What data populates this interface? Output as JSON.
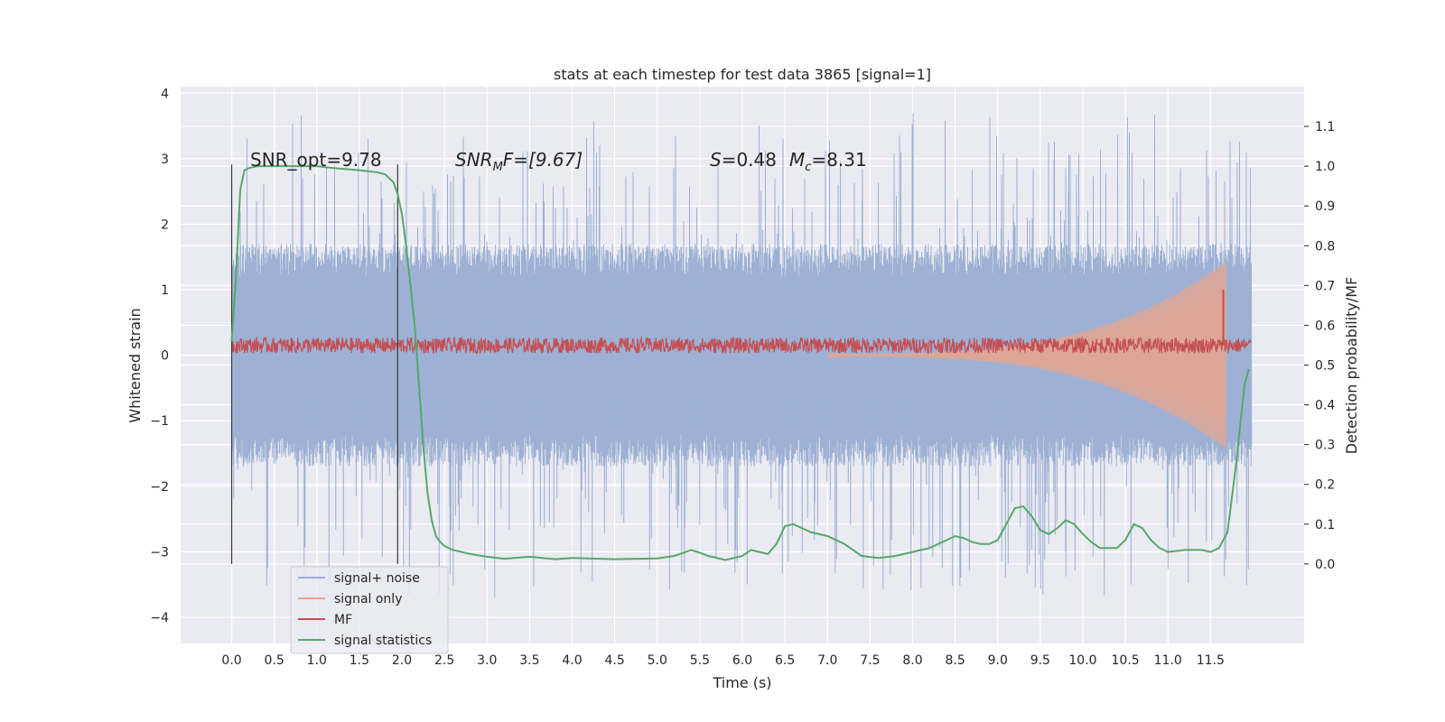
{
  "chart_data": {
    "type": "line",
    "title": "stats at each timestep for test data 3865 [signal=1]",
    "xlabel": "Time (s)",
    "ylabel": "Whitened strain",
    "ylabel_right": "Detection probability/MF",
    "xlim": [
      -0.6,
      12.6
    ],
    "ylim": [
      -4.4,
      4.1
    ],
    "ylim_right": [
      -0.2,
      1.2
    ],
    "x_ticks": [
      "0.0",
      "0.5",
      "1.0",
      "1.5",
      "2.0",
      "2.5",
      "3.0",
      "3.5",
      "4.0",
      "4.5",
      "5.0",
      "5.5",
      "6.0",
      "6.5",
      "7.0",
      "7.5",
      "8.0",
      "8.5",
      "9.0",
      "9.5",
      "10.0",
      "10.5",
      "11.0",
      "11.5"
    ],
    "y_ticks": [
      "4",
      "3",
      "2",
      "1",
      "0",
      "−1",
      "−2",
      "−3",
      "−4"
    ],
    "y_ticks_right": [
      "1.1",
      "1.0",
      "0.9",
      "0.8",
      "0.7",
      "0.6",
      "0.5",
      "0.4",
      "0.3",
      "0.2",
      "0.1",
      "0.0"
    ],
    "grid": true,
    "legend_placement": "lower-left",
    "annotations": {
      "snr_opt": "SNR_opt=9.78",
      "snr_mf_name": "SNR",
      "snr_mf_sub": "M",
      "snr_mf_rest": "F=[9.67]",
      "s_name": "S",
      "s_value": "=0.48",
      "mc_name": "M",
      "mc_sub": "c",
      "mc_value": "=8.31"
    },
    "vertical_markers": [
      0.0,
      1.95
    ],
    "series": [
      {
        "name": "signal+ noise",
        "color": "#9aaed2",
        "axis": "left",
        "envelope": {
          "x_range": [
            0.0,
            11.98
          ],
          "inner_amplitude": 1.7,
          "spike_max": 3.7
        }
      },
      {
        "name": "signal only",
        "color": "#e8a48c",
        "axis": "left",
        "chirp": {
          "start": 7.0,
          "end": 11.68,
          "peak_amplitude": 1.4
        }
      },
      {
        "name": "MF",
        "color": "#c44e52",
        "axis": "left",
        "band": {
          "x_range": [
            0.0,
            11.98
          ],
          "center": 0.15,
          "half_width": 0.12,
          "spike_x": 11.65,
          "spike_y": 1.0
        }
      },
      {
        "name": "signal statistics",
        "color": "#55a868",
        "axis": "right",
        "x": [
          0.0,
          0.05,
          0.1,
          0.15,
          0.2,
          0.3,
          0.5,
          0.8,
          1.0,
          1.2,
          1.5,
          1.7,
          1.8,
          1.9,
          1.95,
          2.0,
          2.05,
          2.1,
          2.15,
          2.2,
          2.25,
          2.3,
          2.35,
          2.4,
          2.45,
          2.5,
          2.6,
          2.8,
          3.0,
          3.2,
          3.5,
          3.8,
          4.0,
          4.5,
          5.0,
          5.2,
          5.4,
          5.5,
          5.6,
          5.8,
          6.0,
          6.1,
          6.2,
          6.3,
          6.4,
          6.5,
          6.6,
          6.7,
          6.8,
          7.0,
          7.2,
          7.4,
          7.6,
          7.8,
          8.0,
          8.2,
          8.4,
          8.5,
          8.6,
          8.7,
          8.8,
          8.9,
          9.0,
          9.1,
          9.2,
          9.3,
          9.4,
          9.5,
          9.6,
          9.7,
          9.8,
          9.9,
          10.0,
          10.1,
          10.2,
          10.4,
          10.5,
          10.6,
          10.7,
          10.8,
          10.9,
          11.0,
          11.2,
          11.4,
          11.5,
          11.6,
          11.7,
          11.8,
          11.9,
          11.95
        ],
        "y": [
          0.56,
          0.72,
          0.94,
          0.99,
          0.995,
          1.0,
          1.0,
          1.0,
          1.0,
          0.995,
          0.99,
          0.985,
          0.98,
          0.96,
          0.93,
          0.88,
          0.8,
          0.7,
          0.6,
          0.45,
          0.3,
          0.18,
          0.11,
          0.07,
          0.055,
          0.045,
          0.035,
          0.025,
          0.018,
          0.013,
          0.018,
          0.012,
          0.015,
          0.012,
          0.014,
          0.02,
          0.035,
          0.028,
          0.02,
          0.01,
          0.02,
          0.035,
          0.03,
          0.025,
          0.05,
          0.095,
          0.1,
          0.09,
          0.08,
          0.07,
          0.05,
          0.02,
          0.015,
          0.02,
          0.03,
          0.04,
          0.06,
          0.07,
          0.065,
          0.055,
          0.05,
          0.05,
          0.06,
          0.1,
          0.14,
          0.145,
          0.12,
          0.085,
          0.075,
          0.09,
          0.11,
          0.1,
          0.075,
          0.055,
          0.04,
          0.04,
          0.06,
          0.1,
          0.09,
          0.06,
          0.04,
          0.03,
          0.035,
          0.035,
          0.03,
          0.04,
          0.08,
          0.25,
          0.45,
          0.49
        ]
      }
    ]
  }
}
